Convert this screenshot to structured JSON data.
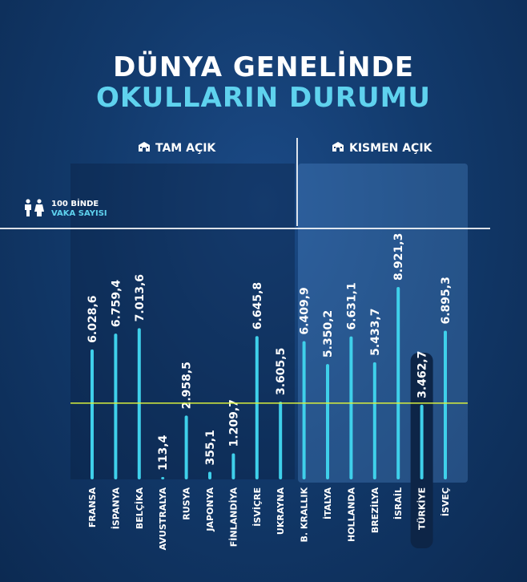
{
  "title": {
    "line1": "DÜNYA GENELİNDE",
    "line2": "OKULLARIN DURUMU"
  },
  "sections": {
    "left": "TAM AÇIK",
    "right": "KISMEN AÇIK"
  },
  "legend": {
    "line1": "100 BİNDE",
    "line2": "VAKA SAYISI"
  },
  "colors": {
    "bar": "#3fd0ea",
    "reference_line": "#d8ee3c",
    "title_accent": "#5fd2ee",
    "highlight_tab": "#0d2547"
  },
  "chart_data": {
    "type": "bar",
    "categories": [
      "FRANSA",
      "İSPANYA",
      "BELÇİKA",
      "AVUSTRALYA",
      "RUSYA",
      "JAPONYA",
      "FİNLANDİYA",
      "İSVİÇRE",
      "UKRAYNA",
      "B. KRALLIK",
      "İTALYA",
      "HOLLANDA",
      "BREZİLYA",
      "İSRAİL",
      "TÜRKİYE",
      "İSVEÇ"
    ],
    "values": [
      6028.6,
      6759.4,
      7013.6,
      113.4,
      2958.5,
      355.1,
      1209.7,
      6645.8,
      3605.5,
      6409.9,
      5350.2,
      6631.1,
      5433.7,
      8921.3,
      3462.7,
      6895.3
    ],
    "value_labels": [
      "6.028,6",
      "6.759,4",
      "7.013,6",
      "113,4",
      "2.958,5",
      "355,1",
      "1.209,7",
      "6.645,8",
      "3.605,5",
      "6.409,9",
      "5.350,2",
      "6.631,1",
      "5.433,7",
      "8.921,3",
      "3.462,7",
      "6.895,3"
    ],
    "groups": [
      {
        "label": "TAM AÇIK",
        "categories": [
          "FRANSA",
          "İSPANYA",
          "BELÇİKA",
          "AVUSTRALYA",
          "RUSYA",
          "JAPONYA",
          "FİNLANDİYA",
          "İSVİÇRE",
          "UKRAYNA"
        ]
      },
      {
        "label": "KISMEN AÇIK",
        "categories": [
          "B. KRALLIK",
          "İTALYA",
          "HOLLANDA",
          "BREZİLYA",
          "İSRAİL",
          "TÜRKİYE",
          "İSVEÇ"
        ]
      }
    ],
    "highlight": "TÜRKİYE",
    "reference_line_value": 3462.7,
    "ylim": [
      0,
      9000
    ]
  }
}
